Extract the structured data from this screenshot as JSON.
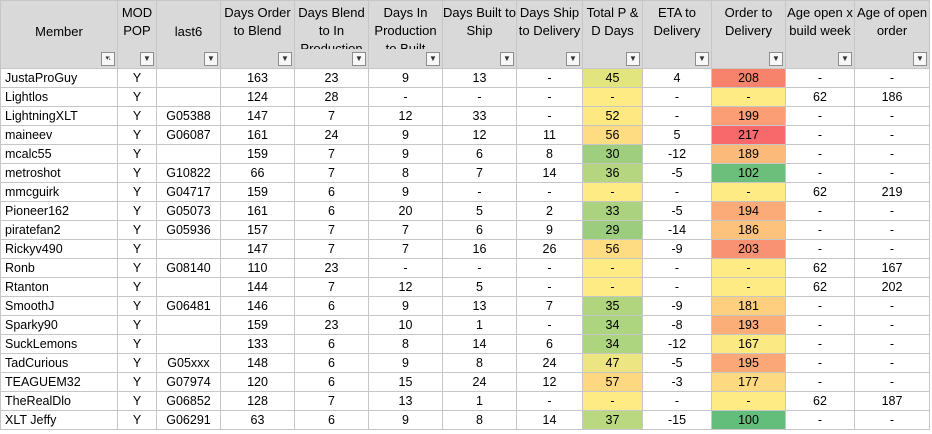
{
  "columns": [
    {
      "id": "member",
      "label": "Member",
      "width": 117,
      "filter_icon": "sort-filter-icon"
    },
    {
      "id": "mod_pop",
      "label": "MOD POP",
      "width": 39,
      "filter_icon": "filter-icon"
    },
    {
      "id": "last6",
      "label": "last6",
      "width": 64,
      "filter_icon": "filter-icon"
    },
    {
      "id": "days_order_blend",
      "label": "Days Order to Blend",
      "width": 74,
      "filter_icon": "filter-icon"
    },
    {
      "id": "days_blend_production",
      "label": "Days Blend to In Production",
      "width": 74,
      "filter_icon": "filter-icon"
    },
    {
      "id": "days_production_built",
      "label": "Days In Production to Built",
      "width": 74,
      "filter_icon": "filter-icon"
    },
    {
      "id": "days_built_ship",
      "label": "Days Built to Ship",
      "width": 74,
      "filter_icon": "filter-icon"
    },
    {
      "id": "days_ship_delivery",
      "label": "Days Ship to Delivery",
      "width": 66,
      "filter_icon": "filter-icon"
    },
    {
      "id": "pd_days",
      "label": "Total P & D Days",
      "width": 60,
      "filter_icon": "filter-icon"
    },
    {
      "id": "eta_delivery",
      "label": "ETA to Delivery",
      "width": 69,
      "filter_icon": "filter-icon"
    },
    {
      "id": "order_delivery",
      "label": "Order to Delivery",
      "width": 74,
      "filter_icon": "filter-icon"
    },
    {
      "id": "age_open",
      "label": "Age open x build week",
      "width": 69,
      "filter_icon": "filter-icon"
    },
    {
      "id": "age_order",
      "label": "Age of open order",
      "width": 75,
      "filter_icon": "filter-icon"
    }
  ],
  "rows": [
    {
      "member": "JustaProGuy",
      "mod_pop": "Y",
      "last6": "",
      "days_order_blend": "163",
      "days_blend_production": "23",
      "days_production_built": "9",
      "days_built_ship": "13",
      "days_ship_delivery": "-",
      "pd_days": "45",
      "eta_delivery": "4",
      "order_delivery": "208",
      "age_open": "-",
      "age_order": "-",
      "pd_color": "#e2e47e",
      "od_color": "#f8836d"
    },
    {
      "member": "Lightlos",
      "mod_pop": "Y",
      "last6": "",
      "days_order_blend": "124",
      "days_blend_production": "28",
      "days_production_built": "-",
      "days_built_ship": "-",
      "days_ship_delivery": "-",
      "pd_days": "-",
      "eta_delivery": "-",
      "order_delivery": "-",
      "age_open": "62",
      "age_order": "186",
      "pd_color": "#ffeb84",
      "od_color": "#ffeb84"
    },
    {
      "member": "LightningXLT",
      "mod_pop": "Y",
      "last6": "G05388",
      "days_order_blend": "147",
      "days_blend_production": "7",
      "days_production_built": "12",
      "days_built_ship": "33",
      "days_ship_delivery": "-",
      "pd_days": "52",
      "eta_delivery": "-",
      "order_delivery": "199",
      "age_open": "-",
      "age_order": "-",
      "pd_color": "#fde882",
      "od_color": "#fb9e75"
    },
    {
      "member": "maineev",
      "mod_pop": "Y",
      "last6": "G06087",
      "days_order_blend": "161",
      "days_blend_production": "24",
      "days_production_built": "9",
      "days_built_ship": "12",
      "days_ship_delivery": "11",
      "pd_days": "56",
      "eta_delivery": "5",
      "order_delivery": "217",
      "age_open": "-",
      "age_order": "-",
      "pd_color": "#fedc81",
      "od_color": "#f8696b"
    },
    {
      "member": "mcalc55",
      "mod_pop": "Y",
      "last6": "",
      "days_order_blend": "159",
      "days_blend_production": "7",
      "days_production_built": "9",
      "days_built_ship": "6",
      "days_ship_delivery": "8",
      "pd_days": "30",
      "eta_delivery": "-12",
      "order_delivery": "189",
      "age_open": "-",
      "age_order": "-",
      "pd_color": "#9fcf7e",
      "od_color": "#fcba7a"
    },
    {
      "member": "metroshot",
      "mod_pop": "Y",
      "last6": "G10822",
      "days_order_blend": "66",
      "days_blend_production": "7",
      "days_production_built": "8",
      "days_built_ship": "7",
      "days_ship_delivery": "14",
      "pd_days": "36",
      "eta_delivery": "-5",
      "order_delivery": "102",
      "age_open": "-",
      "age_order": "-",
      "pd_color": "#b5d67f",
      "od_color": "#6bbf7b"
    },
    {
      "member": "mmcguirk",
      "mod_pop": "Y",
      "last6": "G04717",
      "days_order_blend": "159",
      "days_blend_production": "6",
      "days_production_built": "9",
      "days_built_ship": "-",
      "days_ship_delivery": "-",
      "pd_days": "-",
      "eta_delivery": "-",
      "order_delivery": "-",
      "age_open": "62",
      "age_order": "219",
      "pd_color": "#ffeb84",
      "od_color": "#ffeb84"
    },
    {
      "member": "Pioneer162",
      "mod_pop": "Y",
      "last6": "G05073",
      "days_order_blend": "161",
      "days_blend_production": "6",
      "days_production_built": "20",
      "days_built_ship": "5",
      "days_ship_delivery": "2",
      "pd_days": "33",
      "eta_delivery": "-5",
      "order_delivery": "194",
      "age_open": "-",
      "age_order": "-",
      "pd_color": "#aad27f",
      "od_color": "#fbab78"
    },
    {
      "member": "piratefan2",
      "mod_pop": "Y",
      "last6": "G05936",
      "days_order_blend": "157",
      "days_blend_production": "7",
      "days_production_built": "7",
      "days_built_ship": "6",
      "days_ship_delivery": "9",
      "pd_days": "29",
      "eta_delivery": "-14",
      "order_delivery": "186",
      "age_open": "-",
      "age_order": "-",
      "pd_color": "#9ccd7e",
      "od_color": "#fdc27c"
    },
    {
      "member": "Rickyv490",
      "mod_pop": "Y",
      "last6": "",
      "days_order_blend": "147",
      "days_blend_production": "7",
      "days_production_built": "7",
      "days_built_ship": "16",
      "days_ship_delivery": "26",
      "pd_days": "56",
      "eta_delivery": "-9",
      "order_delivery": "203",
      "age_open": "-",
      "age_order": "-",
      "pd_color": "#fedc81",
      "od_color": "#f99272"
    },
    {
      "member": "Ronb",
      "mod_pop": "Y",
      "last6": "G08140",
      "days_order_blend": "110",
      "days_blend_production": "23",
      "days_production_built": "-",
      "days_built_ship": "-",
      "days_ship_delivery": "-",
      "pd_days": "-",
      "eta_delivery": "-",
      "order_delivery": "-",
      "age_open": "62",
      "age_order": "167",
      "pd_color": "#ffeb84",
      "od_color": "#ffeb84"
    },
    {
      "member": "Rtanton",
      "mod_pop": "Y",
      "last6": "",
      "days_order_blend": "144",
      "days_blend_production": "7",
      "days_production_built": "12",
      "days_built_ship": "5",
      "days_ship_delivery": "-",
      "pd_days": "-",
      "eta_delivery": "-",
      "order_delivery": "-",
      "age_open": "62",
      "age_order": "202",
      "pd_color": "#ffeb84",
      "od_color": "#ffeb84"
    },
    {
      "member": "SmoothJ",
      "mod_pop": "Y",
      "last6": "G06481",
      "days_order_blend": "146",
      "days_blend_production": "6",
      "days_production_built": "9",
      "days_built_ship": "13",
      "days_ship_delivery": "7",
      "pd_days": "35",
      "eta_delivery": "-9",
      "order_delivery": "181",
      "age_open": "-",
      "age_order": "-",
      "pd_color": "#b1d57f",
      "od_color": "#fdcf7e"
    },
    {
      "member": "Sparky90",
      "mod_pop": "Y",
      "last6": "",
      "days_order_blend": "159",
      "days_blend_production": "23",
      "days_production_built": "10",
      "days_built_ship": "1",
      "days_ship_delivery": "-",
      "pd_days": "34",
      "eta_delivery": "-8",
      "order_delivery": "193",
      "age_open": "-",
      "age_order": "-",
      "pd_color": "#add47f",
      "od_color": "#fbae78"
    },
    {
      "member": "SuckLemons",
      "mod_pop": "Y",
      "last6": "",
      "days_order_blend": "133",
      "days_blend_production": "6",
      "days_production_built": "8",
      "days_built_ship": "14",
      "days_ship_delivery": "6",
      "pd_days": "34",
      "eta_delivery": "-12",
      "order_delivery": "167",
      "age_open": "-",
      "age_order": "-",
      "pd_color": "#add47f",
      "od_color": "#fbe983"
    },
    {
      "member": "TadCurious",
      "mod_pop": "Y",
      "last6": "G05xxx",
      "days_order_blend": "148",
      "days_blend_production": "6",
      "days_production_built": "9",
      "days_built_ship": "8",
      "days_ship_delivery": "24",
      "pd_days": "47",
      "eta_delivery": "-5",
      "order_delivery": "195",
      "age_open": "-",
      "age_order": "-",
      "pd_color": "#ede582",
      "od_color": "#fba777"
    },
    {
      "member": "TEAGUEM32",
      "mod_pop": "Y",
      "last6": "G07974",
      "days_order_blend": "120",
      "days_blend_production": "6",
      "days_production_built": "15",
      "days_built_ship": "24",
      "days_ship_delivery": "12",
      "pd_days": "57",
      "eta_delivery": "-3",
      "order_delivery": "177",
      "age_open": "-",
      "age_order": "-",
      "pd_color": "#fed881",
      "od_color": "#fdd981"
    },
    {
      "member": "TheRealDlo",
      "mod_pop": "Y",
      "last6": "G06852",
      "days_order_blend": "128",
      "days_blend_production": "7",
      "days_production_built": "13",
      "days_built_ship": "1",
      "days_ship_delivery": "-",
      "pd_days": "-",
      "eta_delivery": "-",
      "order_delivery": "-",
      "age_open": "62",
      "age_order": "187",
      "pd_color": "#ffeb84",
      "od_color": "#ffeb84"
    },
    {
      "member": "XLT Jeffy",
      "mod_pop": "Y",
      "last6": "G06291",
      "days_order_blend": "63",
      "days_blend_production": "6",
      "days_production_built": "9",
      "days_built_ship": "8",
      "days_ship_delivery": "14",
      "pd_days": "37",
      "eta_delivery": "-15",
      "order_delivery": "100",
      "age_open": "-",
      "age_order": "-",
      "pd_color": "#bad87f",
      "od_color": "#63be7b"
    }
  ]
}
